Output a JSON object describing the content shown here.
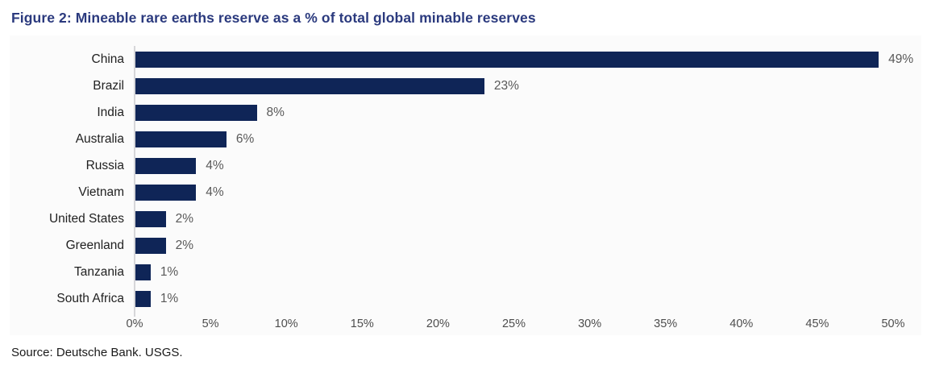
{
  "header": {
    "title": "Figure 2: Mineable rare earths reserve as a % of total global minable reserves"
  },
  "footer": {
    "source": "Source: Deutsche Bank. USGS."
  },
  "colors": {
    "bar": "#0f2557",
    "title_text": "#2b3a7e",
    "category_text": "#1f1f1f",
    "value_text": "#595959",
    "tick_text": "#4d4d4d",
    "axis_line": "#d6d6d9",
    "panel_bg": "#fbfbfb",
    "source_text": "#1a1a1a"
  },
  "chart_data": {
    "type": "bar",
    "orientation": "horizontal",
    "title": "Figure 2: Mineable rare earths reserve as a % of total global minable reserves",
    "categories": [
      "China",
      "Brazil",
      "India",
      "Australia",
      "Russia",
      "Vietnam",
      "United States",
      "Greenland",
      "Tanzania",
      "South Africa"
    ],
    "values": [
      49,
      23,
      8,
      6,
      4,
      4,
      2,
      2,
      1,
      1
    ],
    "value_labels": [
      "49%",
      "23%",
      "8%",
      "6%",
      "4%",
      "4%",
      "2%",
      "2%",
      "1%",
      "1%"
    ],
    "xlabel": "",
    "ylabel": "",
    "xlim": [
      0,
      50
    ],
    "x_tick_values": [
      0,
      5,
      10,
      15,
      20,
      25,
      30,
      35,
      40,
      45,
      50
    ],
    "x_tick_labels": [
      "0%",
      "5%",
      "10%",
      "15%",
      "20%",
      "25%",
      "30%",
      "35%",
      "40%",
      "45%",
      "50%"
    ],
    "grid": false,
    "legend": false,
    "source": "Source: Deutsche Bank. USGS."
  }
}
